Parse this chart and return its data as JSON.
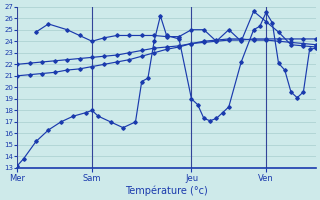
{
  "background_color": "#ceeaea",
  "grid_color": "#a8cece",
  "line_color": "#1a3aad",
  "xlabel": "Température (°c)",
  "xlabel_fontsize": 7,
  "ylim": [
    13,
    27
  ],
  "xlim": [
    0,
    24
  ],
  "day_labels": [
    "Mer",
    "Sam",
    "Jeu",
    "Ven"
  ],
  "day_positions": [
    0,
    6,
    14,
    20
  ],
  "lines": [
    {
      "x": [
        0,
        0.5,
        1.5,
        2.5,
        3.5,
        4.5,
        5.5,
        6,
        6.5,
        7.5,
        8.5,
        9.5,
        10,
        10.5,
        11,
        11.5,
        12,
        13,
        14,
        14.5,
        15,
        15.5,
        16,
        16.5,
        17,
        18,
        19,
        19.5,
        20,
        20.5,
        21,
        21.5,
        22,
        22.5,
        23,
        23.5,
        24
      ],
      "y": [
        13.2,
        13.8,
        15.3,
        16.3,
        17.0,
        17.5,
        17.8,
        18.0,
        17.5,
        17.0,
        16.5,
        17.0,
        20.5,
        20.8,
        24.0,
        26.2,
        24.5,
        24.2,
        19.0,
        18.5,
        17.3,
        17.1,
        17.3,
        17.8,
        18.3,
        22.2,
        25.0,
        25.3,
        26.5,
        25.6,
        22.1,
        21.5,
        19.6,
        19.1,
        19.6,
        23.3,
        23.4
      ]
    },
    {
      "x": [
        0,
        1,
        2,
        3,
        4,
        5,
        6,
        7,
        8,
        9,
        10,
        11,
        12,
        13,
        14,
        15,
        16,
        17,
        18,
        19,
        20,
        21,
        22,
        23,
        24
      ],
      "y": [
        21.0,
        21.1,
        21.2,
        21.3,
        21.5,
        21.6,
        21.8,
        22.0,
        22.2,
        22.4,
        22.7,
        23.0,
        23.3,
        23.5,
        23.8,
        24.0,
        24.1,
        24.2,
        24.2,
        24.1,
        24.1,
        24.0,
        23.9,
        23.8,
        23.7
      ]
    },
    {
      "x": [
        0,
        1,
        2,
        3,
        4,
        5,
        6,
        7,
        8,
        9,
        10,
        11,
        12,
        13,
        14,
        15,
        16,
        17,
        18,
        19,
        20,
        21,
        22,
        23,
        24
      ],
      "y": [
        22.0,
        22.1,
        22.2,
        22.3,
        22.4,
        22.5,
        22.6,
        22.7,
        22.8,
        23.0,
        23.2,
        23.4,
        23.5,
        23.6,
        23.8,
        23.9,
        24.0,
        24.1,
        24.1,
        24.2,
        24.2,
        24.2,
        24.2,
        24.2,
        24.2
      ]
    },
    {
      "x": [
        1.5,
        2.5,
        4,
        5,
        6,
        7,
        8,
        9,
        10,
        11,
        12,
        13,
        14,
        15,
        16,
        17,
        18,
        19,
        20,
        21,
        22,
        23,
        24
      ],
      "y": [
        24.8,
        25.5,
        25.0,
        24.5,
        24.0,
        24.3,
        24.5,
        24.5,
        24.5,
        24.5,
        24.4,
        24.4,
        25.0,
        25.0,
        24.0,
        25.0,
        24.0,
        26.6,
        25.7,
        24.8,
        23.7,
        23.6,
        23.5
      ]
    }
  ]
}
